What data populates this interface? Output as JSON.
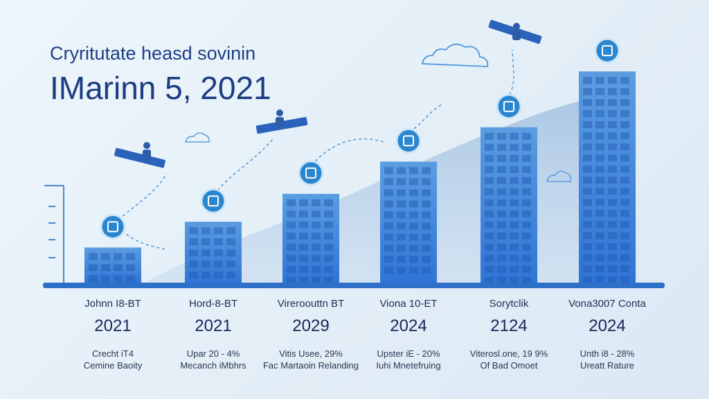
{
  "title_line1": "Cryritutate heasd sovinin",
  "title_line2": "IMarinn 5, 2021",
  "colors": {
    "bar_light": "#5b9de0",
    "bar_dark": "#2a6ed3",
    "icon_circle": "#2a86cf",
    "title": "#1d3f86",
    "baseline": "#2e6fc8",
    "area": "#a9c6e4"
  },
  "chart_data": {
    "type": "bar",
    "title": "IMarinn 5, 2021",
    "subtitle": "Cryritutate heasd sovinin",
    "xlabel": "",
    "ylabel": "",
    "ylim": [
      0,
      100
    ],
    "grid": false,
    "categories": [
      "Johnn I8-BT",
      "Hord-8-BT",
      "Vireroouttn BT",
      "Viona 10-ET",
      "Sorytclik",
      "Vona3007 Conta"
    ],
    "years": [
      "2021",
      "2021",
      "2029",
      "2024",
      "2124",
      "2024"
    ],
    "desc_line1": [
      "Crecht iT4",
      "Upar 20 - 4%",
      "Vitis Usee, 29%",
      "Upster iE - 20%",
      "Viterosl.one, 19 9%",
      "Unth i8 - 28%"
    ],
    "desc_line2": [
      "Cemine Baoity",
      "Mecanch iMbhrs",
      "Fac Martaoin Relanding",
      "Iuhi Mnetefruing",
      "Of Bad Omoet",
      "Ureatt Rature"
    ],
    "values": [
      17,
      29,
      42,
      57,
      73,
      99
    ]
  }
}
